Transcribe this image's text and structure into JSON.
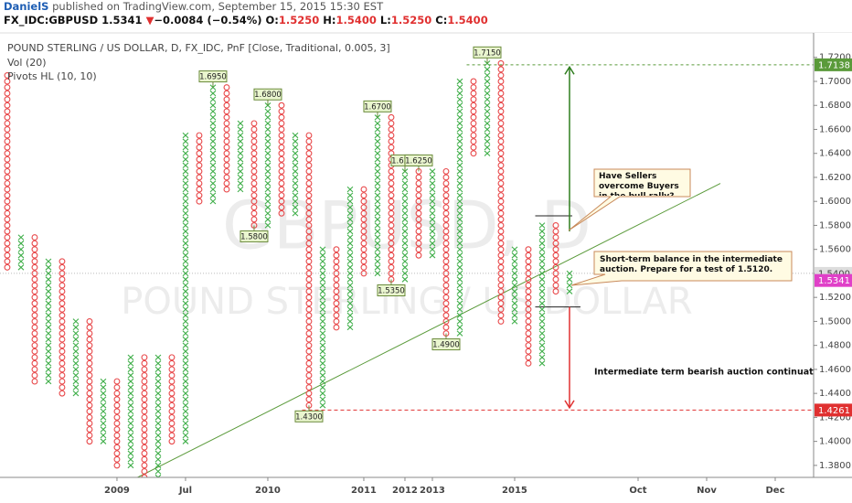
{
  "header": {
    "author": "DanielS",
    "published": "published on TradingView.com, September 15, 2015 15:30 EST",
    "symbol": "FX_IDC:GBPUSD",
    "last": "1.5341",
    "arrow": "▼",
    "change": "−0.0084 (−0.54%)",
    "ohlc": [
      {
        "label": "O:",
        "value": "1.5250"
      },
      {
        "label": "H:",
        "value": "1.5400"
      },
      {
        "label": "L:",
        "value": "1.5250"
      },
      {
        "label": "C:",
        "value": "1.5400"
      }
    ]
  },
  "chart_data": {
    "type": "pnf",
    "legend": [
      "POUND STERLING / US DOLLAR, D, FX_IDC, PnF [Close, Traditional, 0.005, 3]",
      "Vol (20)",
      "Pivots HL (10, 10)"
    ],
    "watermark": [
      "GBPUSD, D",
      "POUND STERLING / US DOLLAR"
    ],
    "box_size": 0.005,
    "columns": [
      {
        "type": "O",
        "low": 1.545,
        "high": 1.705
      },
      {
        "type": "X",
        "low": 1.545,
        "high": 1.57
      },
      {
        "type": "O",
        "low": 1.45,
        "high": 1.57
      },
      {
        "type": "X",
        "low": 1.45,
        "high": 1.55
      },
      {
        "type": "O",
        "low": 1.44,
        "high": 1.55
      },
      {
        "type": "X",
        "low": 1.44,
        "high": 1.5
      },
      {
        "type": "O",
        "low": 1.4,
        "high": 1.5
      },
      {
        "type": "X",
        "low": 1.4,
        "high": 1.45
      },
      {
        "type": "O",
        "low": 1.38,
        "high": 1.45
      },
      {
        "type": "X",
        "low": 1.38,
        "high": 1.47
      },
      {
        "type": "O",
        "low": 1.37,
        "high": 1.47
      },
      {
        "type": "X",
        "low": 1.37,
        "high": 1.47
      },
      {
        "type": "O",
        "low": 1.4,
        "high": 1.47
      },
      {
        "type": "X",
        "low": 1.4,
        "high": 1.655
      },
      {
        "type": "O",
        "low": 1.6,
        "high": 1.655
      },
      {
        "type": "X",
        "low": 1.6,
        "high": 1.695
      },
      {
        "type": "O",
        "low": 1.61,
        "high": 1.695
      },
      {
        "type": "X",
        "low": 1.61,
        "high": 1.665
      },
      {
        "type": "O",
        "low": 1.58,
        "high": 1.665
      },
      {
        "type": "X",
        "low": 1.58,
        "high": 1.68
      },
      {
        "type": "O",
        "low": 1.59,
        "high": 1.68
      },
      {
        "type": "X",
        "low": 1.59,
        "high": 1.655
      },
      {
        "type": "O",
        "low": 1.43,
        "high": 1.655
      },
      {
        "type": "X",
        "low": 1.43,
        "high": 1.56
      },
      {
        "type": "O",
        "low": 1.495,
        "high": 1.56
      },
      {
        "type": "X",
        "low": 1.495,
        "high": 1.61
      },
      {
        "type": "O",
        "low": 1.54,
        "high": 1.61
      },
      {
        "type": "X",
        "low": 1.54,
        "high": 1.67
      },
      {
        "type": "O",
        "low": 1.535,
        "high": 1.67
      },
      {
        "type": "X",
        "low": 1.535,
        "high": 1.625
      },
      {
        "type": "O",
        "low": 1.555,
        "high": 1.625
      },
      {
        "type": "X",
        "low": 1.555,
        "high": 1.625
      },
      {
        "type": "O",
        "low": 1.49,
        "high": 1.625
      },
      {
        "type": "X",
        "low": 1.49,
        "high": 1.7
      },
      {
        "type": "O",
        "low": 1.64,
        "high": 1.7
      },
      {
        "type": "X",
        "low": 1.64,
        "high": 1.715
      },
      {
        "type": "O",
        "low": 1.5,
        "high": 1.715
      },
      {
        "type": "X",
        "low": 1.5,
        "high": 1.56
      },
      {
        "type": "O",
        "low": 1.465,
        "high": 1.56
      },
      {
        "type": "X",
        "low": 1.465,
        "high": 1.58
      },
      {
        "type": "O",
        "low": 1.525,
        "high": 1.58
      },
      {
        "type": "X",
        "low": 1.525,
        "high": 1.54
      }
    ],
    "x_color": "#3fae49",
    "o_color": "#e8484a",
    "pivots": [
      {
        "kind": "high",
        "value": 1.695,
        "label": "1.6950"
      },
      {
        "kind": "low",
        "value": 1.58,
        "label": "1.5800"
      },
      {
        "kind": "high",
        "value": 1.68,
        "label": "1.6800"
      },
      {
        "kind": "high",
        "value": 1.67,
        "label": "1.6700"
      },
      {
        "kind": "low",
        "value": 1.43,
        "label": "1.4300"
      },
      {
        "kind": "low",
        "value": 1.535,
        "label": "1.5350"
      },
      {
        "kind": "high",
        "value": 1.625,
        "label": "1.6250"
      },
      {
        "kind": "high",
        "value": 1.625,
        "label": "1.6250"
      },
      {
        "kind": "low",
        "value": 1.49,
        "label": "1.4900"
      },
      {
        "kind": "high",
        "value": 1.715,
        "label": "1.7150"
      }
    ],
    "xlim": [
      -0.53,
      58.8
    ],
    "ylim": [
      1.37,
      1.74
    ],
    "xticks": [
      {
        "value": 8,
        "label": "2009"
      },
      {
        "value": 13,
        "label": "Jul"
      },
      {
        "value": 19,
        "label": "2010"
      },
      {
        "value": 26,
        "label": "2011"
      },
      {
        "value": 29,
        "label": "2012"
      },
      {
        "value": 31,
        "label": "2013"
      },
      {
        "value": 37,
        "label": "2015"
      },
      {
        "value": 46,
        "label": "Oct"
      },
      {
        "value": 51,
        "label": "Nov"
      },
      {
        "value": 56,
        "label": "Dec"
      }
    ],
    "yticks": [
      {
        "value": 1.38,
        "label": "1.3800"
      },
      {
        "value": 1.4,
        "label": "1.4000"
      },
      {
        "value": 1.42,
        "label": "1.4200"
      },
      {
        "value": 1.44,
        "label": "1.4400"
      },
      {
        "value": 1.46,
        "label": "1.4600"
      },
      {
        "value": 1.48,
        "label": "1.4800"
      },
      {
        "value": 1.5,
        "label": "1.5000"
      },
      {
        "value": 1.52,
        "label": "1.5200"
      },
      {
        "value": 1.54,
        "label": "1.5400"
      },
      {
        "value": 1.56,
        "label": "1.5600"
      },
      {
        "value": 1.58,
        "label": "1.5800"
      },
      {
        "value": 1.6,
        "label": "1.6000"
      },
      {
        "value": 1.62,
        "label": "1.6200"
      },
      {
        "value": 1.64,
        "label": "1.6400"
      },
      {
        "value": 1.66,
        "label": "1.6600"
      },
      {
        "value": 1.68,
        "label": "1.6800"
      },
      {
        "value": 1.7,
        "label": "1.7000"
      },
      {
        "value": 1.72,
        "label": "1.7200"
      }
    ],
    "trendline": {
      "from": [
        9.5,
        1.37
      ],
      "to": [
        52,
        1.615
      ],
      "color": "#5a9a3a"
    },
    "levels": [
      {
        "value": 1.7138,
        "from": 33.5,
        "to": 58.8,
        "color": "#5a9a3a",
        "dash": "3 3"
      },
      {
        "value": 1.4261,
        "from": 21.5,
        "to": 58.8,
        "color": "#e03030",
        "dash": "4 3"
      },
      {
        "value": 1.54,
        "from": -0.53,
        "to": 58.8,
        "color": "#bbbbbb",
        "dash": "1 2"
      },
      {
        "value": 1.588,
        "from": 38.5,
        "to": 41.2,
        "color": "#222222",
        "dash": ""
      },
      {
        "value": 1.512,
        "from": 38.5,
        "to": 41.8,
        "color": "#222222",
        "dash": ""
      }
    ],
    "arrows": [
      {
        "col": 41,
        "from": 1.575,
        "to": 1.712,
        "color": "#2e7d1e"
      },
      {
        "col": 41,
        "from": 1.512,
        "to": 1.428,
        "color": "#e03030"
      }
    ],
    "price_labels": [
      {
        "value": 1.7138,
        "label": "1.7138",
        "color": "#5a9a3a",
        "text_color": "#ffffff"
      },
      {
        "value": 1.54,
        "label": "1.5400",
        "color": "#dddddd",
        "text_color": "#444444"
      },
      {
        "value": 1.5341,
        "label": "1.5341",
        "color": "#e040c8",
        "text_color": "#ffffff"
      },
      {
        "value": 1.4261,
        "label": "1.4261",
        "color": "#e03030",
        "text_color": "#ffffff"
      }
    ],
    "annotations": [
      "Have Sellers overcome Buyers in the bull rally?",
      "Short-term balance in the intermediate auction. Prepare for a test of 1.5120.",
      "Intermediate term bearish auction continuation zone."
    ]
  }
}
